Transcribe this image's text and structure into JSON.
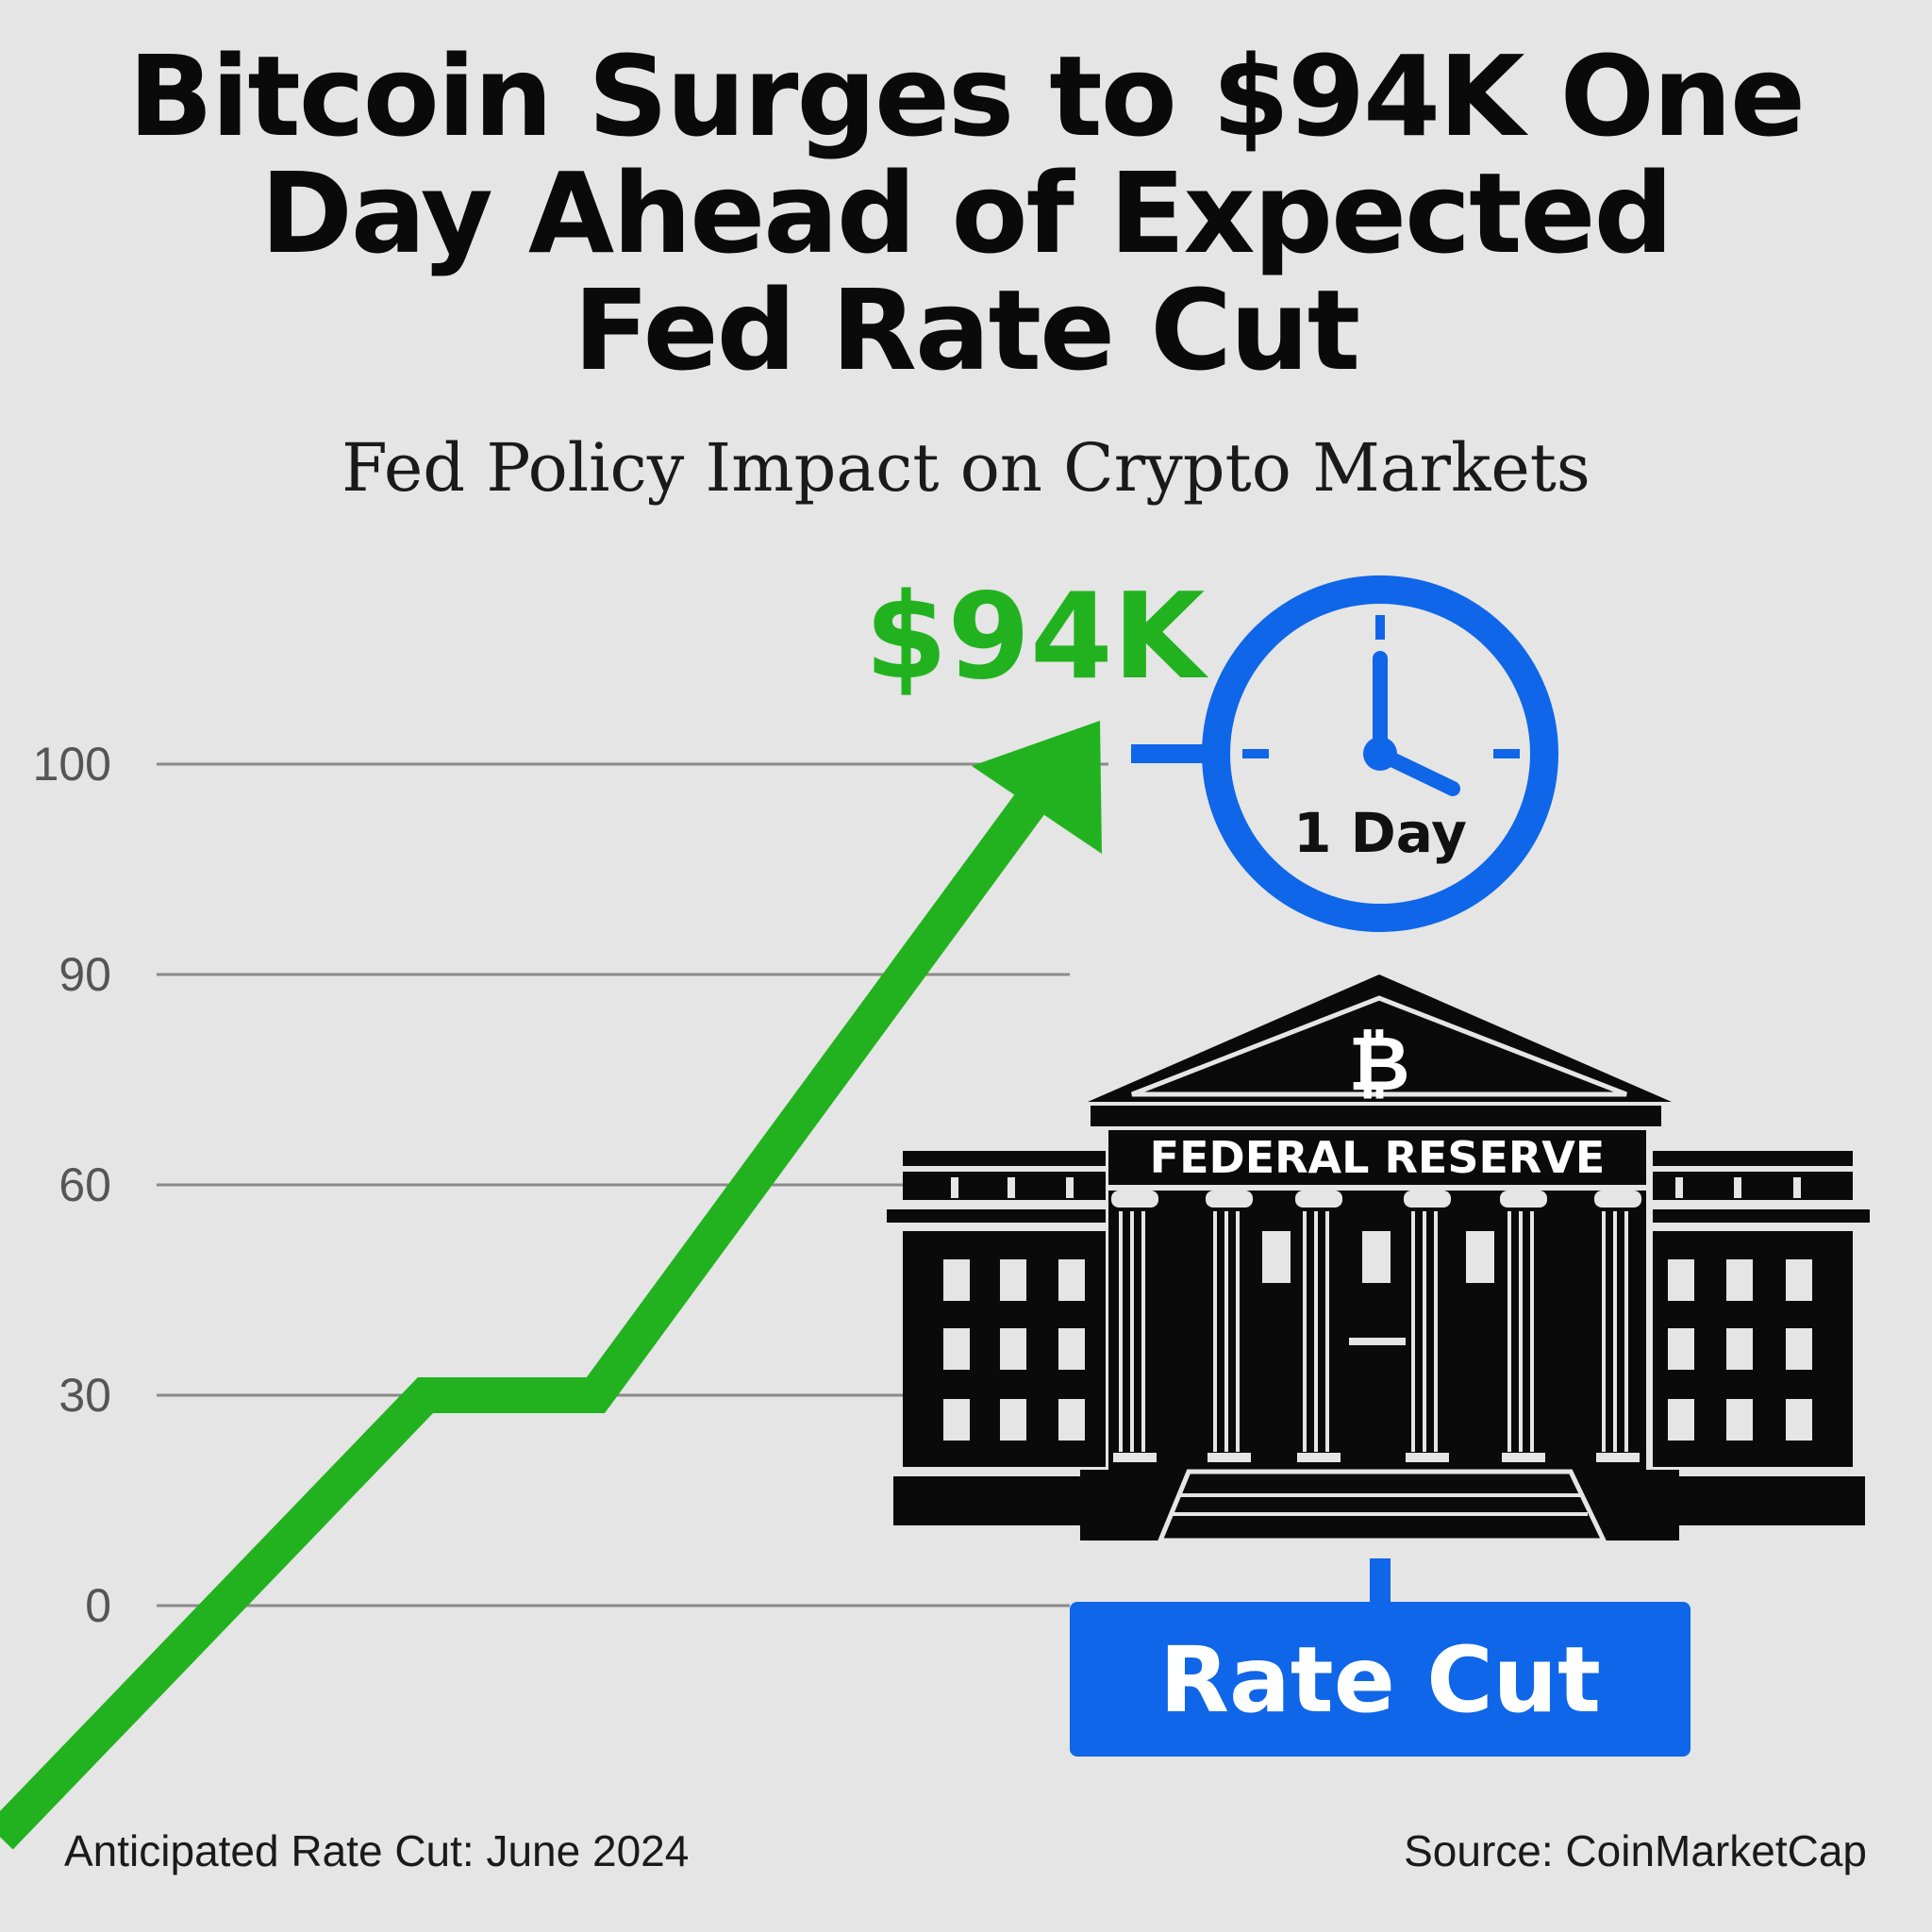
{
  "title_lines": [
    "Bitcoin Surges to $94K One",
    "Day Ahead of Expected",
    "Fed Rate Cut"
  ],
  "subtitle": "Fed Policy Impact on Crypto Markets",
  "price_label": "$94K",
  "clock_label": "1 Day",
  "building_label": "FEDERAL RESERVE",
  "building_symbol": "₿",
  "rate_cut_label": "Rate Cut",
  "footer_left": "Anticipated Rate Cut: June 2024",
  "footer_right": "Source: CoinMarketCap",
  "colors": {
    "line": "#22b21f",
    "accent_blue": "#0f66e8",
    "building": "#0a0a0a",
    "background": "#e4e5e4"
  },
  "icons": [
    "clock-icon",
    "federal-reserve-building-icon",
    "bitcoin-icon",
    "arrow-up-icon"
  ],
  "chart_data": {
    "type": "line",
    "title": "",
    "xlabel": "",
    "ylabel": "",
    "y_ticks": [
      "100",
      "90",
      "60",
      "30",
      "0"
    ],
    "grid": true,
    "series": [
      {
        "x": [
          0,
          1,
          1.4,
          2.6
        ],
        "y": [
          -33,
          30,
          30,
          102
        ]
      }
    ],
    "end_marker": "arrow"
  }
}
